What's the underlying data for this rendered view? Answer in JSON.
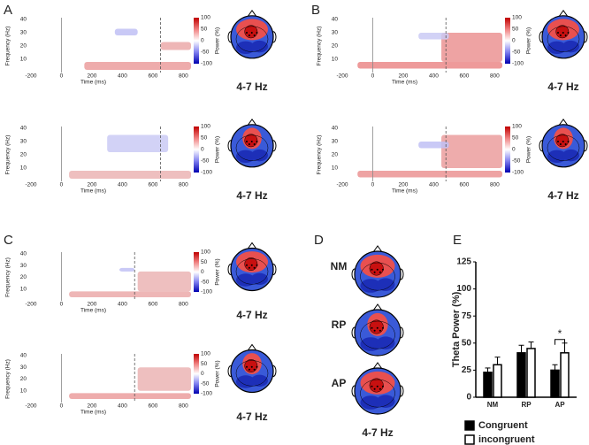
{
  "panel_labels": [
    "A",
    "B",
    "C",
    "D",
    "E"
  ],
  "panel_d": {
    "labels": [
      "NM",
      "RP",
      "AP"
    ],
    "band": "4-7 Hz"
  },
  "chart_data": [
    {
      "type": "heatmap",
      "xlabel": "Time (ms)",
      "ylabel": "Frequency (Hz)",
      "xlim": [
        -200,
        850
      ],
      "xticks": [
        -200,
        0,
        200,
        400,
        600,
        800
      ],
      "ylim": [
        0,
        40
      ],
      "yticks": [
        10,
        20,
        30,
        40
      ],
      "colorbar_label": "Power (%)",
      "clim": [
        -100,
        100
      ],
      "cticks": [
        100,
        50,
        0,
        -50,
        -100
      ],
      "onset": 0,
      "dashed": 650,
      "topomap_label": "4-7 Hz",
      "clusters": [
        {
          "time": [
            150,
            850
          ],
          "freq": [
            2,
            8
          ],
          "power": 35
        },
        {
          "time": [
            350,
            500
          ],
          "freq": [
            28,
            33
          ],
          "power": -20
        },
        {
          "time": [
            650,
            850
          ],
          "freq": [
            17,
            23
          ],
          "power": 30
        }
      ]
    },
    {
      "type": "heatmap",
      "xlabel": "Time (ms)",
      "ylabel": "Frequency (Hz)",
      "xlim": [
        -200,
        850
      ],
      "xticks": [
        -200,
        0,
        200,
        400,
        600,
        800
      ],
      "ylim": [
        0,
        40
      ],
      "yticks": [
        10,
        20,
        30,
        40
      ],
      "colorbar_label": "Power (%)",
      "clim": [
        -100,
        100
      ],
      "cticks": [
        100,
        50,
        0,
        -50,
        -100
      ],
      "onset": 0,
      "dashed": 650,
      "topomap_label": "4-7 Hz",
      "clusters": [
        {
          "time": [
            50,
            850
          ],
          "freq": [
            2,
            8
          ],
          "power": 25
        },
        {
          "time": [
            300,
            700
          ],
          "freq": [
            22,
            35
          ],
          "power": -15
        }
      ]
    },
    {
      "type": "heatmap",
      "xlabel": "Time (ms)",
      "ylabel": "Frequency (Hz)",
      "xlim": [
        -200,
        850
      ],
      "xticks": [
        -200,
        0,
        200,
        400,
        600,
        800
      ],
      "ylim": [
        0,
        40
      ],
      "yticks": [
        10,
        20,
        30,
        40
      ],
      "colorbar_label": "Power (%)",
      "clim": [
        -100,
        100
      ],
      "cticks": [
        100,
        50,
        0,
        -50,
        -100
      ],
      "onset": 0,
      "dashed": 480,
      "topomap_label": "4-7 Hz",
      "clusters": [
        {
          "time": [
            -100,
            850
          ],
          "freq": [
            3,
            8
          ],
          "power": 45
        },
        {
          "time": [
            450,
            850
          ],
          "freq": [
            8,
            30
          ],
          "power": 40
        },
        {
          "time": [
            300,
            500
          ],
          "freq": [
            25,
            30
          ],
          "power": -15
        }
      ]
    },
    {
      "type": "heatmap",
      "xlabel": "Time (ms)",
      "ylabel": "Frequency (Hz)",
      "xlim": [
        -200,
        850
      ],
      "xticks": [
        -200,
        0,
        200,
        400,
        600,
        800
      ],
      "ylim": [
        0,
        40
      ],
      "yticks": [
        10,
        20,
        30,
        40
      ],
      "colorbar_label": "Power (%)",
      "clim": [
        -100,
        100
      ],
      "cticks": [
        100,
        50,
        0,
        -50,
        -100
      ],
      "onset": 0,
      "dashed": 480,
      "topomap_label": "4-7 Hz",
      "clusters": [
        {
          "time": [
            -100,
            850
          ],
          "freq": [
            3,
            8
          ],
          "power": 40
        },
        {
          "time": [
            450,
            850
          ],
          "freq": [
            10,
            35
          ],
          "power": 35
        },
        {
          "time": [
            300,
            500
          ],
          "freq": [
            25,
            30
          ],
          "power": -20
        }
      ]
    },
    {
      "type": "heatmap",
      "xlabel": "Time (ms)",
      "ylabel": "Frequency (Hz)",
      "xlim": [
        -200,
        850
      ],
      "xticks": [
        -200,
        0,
        200,
        400,
        600,
        800
      ],
      "ylim": [
        0,
        40
      ],
      "yticks": [
        10,
        20,
        30,
        40
      ],
      "colorbar_label": "Power (%)",
      "clim": [
        -100,
        100
      ],
      "cticks": [
        100,
        50,
        0,
        -50,
        -100
      ],
      "onset": 0,
      "dashed": 480,
      "topomap_label": "4-7 Hz",
      "clusters": [
        {
          "time": [
            50,
            850
          ],
          "freq": [
            3,
            8
          ],
          "power": 30
        },
        {
          "time": [
            500,
            850
          ],
          "freq": [
            8,
            25
          ],
          "power": 25
        },
        {
          "time": [
            380,
            480
          ],
          "freq": [
            25,
            28
          ],
          "power": -20
        }
      ]
    },
    {
      "type": "heatmap",
      "xlabel": "Time (ms)",
      "ylabel": "Frequency (Hz)",
      "xlim": [
        -200,
        850
      ],
      "xticks": [
        -200,
        0,
        200,
        400,
        600,
        800
      ],
      "ylim": [
        0,
        40
      ],
      "yticks": [
        10,
        20,
        30,
        40
      ],
      "colorbar_label": "Power (%)",
      "clim": [
        -100,
        100
      ],
      "cticks": [
        100,
        50,
        0,
        -50,
        -100
      ],
      "onset": 0,
      "dashed": 480,
      "topomap_label": "4-7 Hz",
      "clusters": [
        {
          "time": [
            50,
            850
          ],
          "freq": [
            3,
            8
          ],
          "power": 35
        },
        {
          "time": [
            500,
            850
          ],
          "freq": [
            10,
            30
          ],
          "power": 25
        }
      ]
    },
    {
      "type": "bar",
      "ylabel": "Theta Power (%)",
      "categories": [
        "NM",
        "RP",
        "AP"
      ],
      "ylim": [
        0,
        125
      ],
      "yticks": [
        0,
        25,
        50,
        75,
        100,
        125
      ],
      "annotation": "*",
      "series": [
        {
          "name": "Congruent",
          "color": "#000000",
          "values": [
            23,
            41,
            25
          ],
          "errors": [
            4,
            7,
            5
          ]
        },
        {
          "name": "incongruent",
          "color": "#ffffff",
          "values": [
            30,
            45,
            41
          ],
          "errors": [
            7,
            6,
            9
          ]
        }
      ]
    }
  ]
}
